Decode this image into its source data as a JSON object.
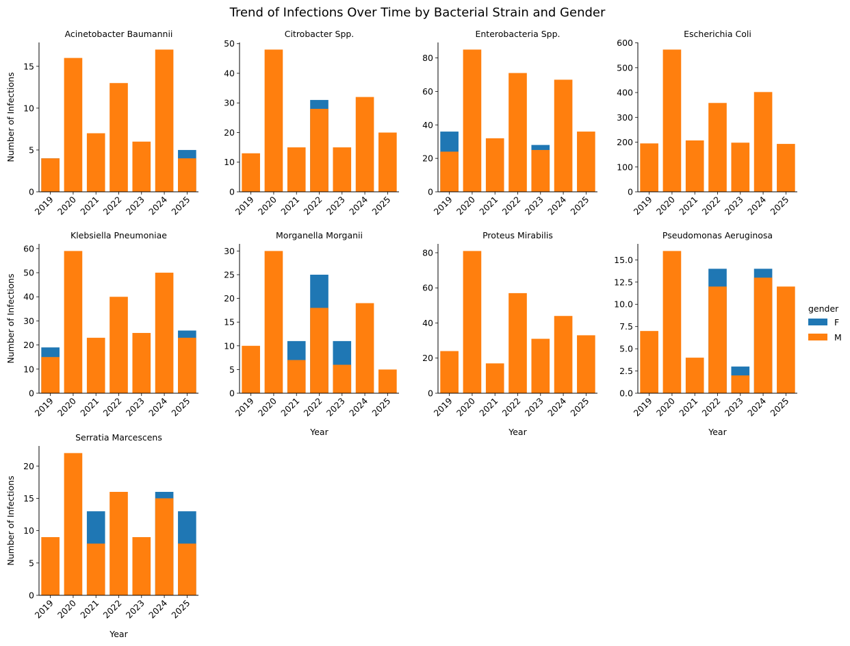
{
  "figure": {
    "title": "Trend of Infections Over Time by Bacterial Strain and Gender",
    "xlabel": "Year",
    "ylabel": "Number of Infections"
  },
  "legend": {
    "title": "gender",
    "placement": "right",
    "entries": [
      {
        "label": "F",
        "color": "#1f77b4"
      },
      {
        "label": "M",
        "color": "#ff7f0e"
      }
    ]
  },
  "colors": {
    "F": "#1f77b4",
    "M": "#ff7f0e"
  },
  "chart_data": [
    {
      "type": "bar",
      "title": "Acinetobacter Baumannii",
      "categories": [
        "2019",
        "2020",
        "2021",
        "2022",
        "2023",
        "2024",
        "2025"
      ],
      "series": [
        {
          "name": "F",
          "values": [
            4,
            0,
            0,
            0,
            0,
            0,
            5
          ]
        },
        {
          "name": "M",
          "values": [
            4,
            16,
            7,
            13,
            6,
            17,
            4
          ]
        }
      ],
      "ylim": [
        0,
        17.85
      ],
      "yticks": [
        0,
        5,
        10,
        15
      ],
      "ytick_labels": [
        "0",
        "5",
        "10",
        "15"
      ],
      "xlabel": "",
      "ylabel": "Number of Infections"
    },
    {
      "type": "bar",
      "title": "Citrobacter Spp.",
      "categories": [
        "2019",
        "2020",
        "2021",
        "2022",
        "2023",
        "2024",
        "2025"
      ],
      "series": [
        {
          "name": "F",
          "values": [
            0,
            0,
            0,
            31,
            0,
            0,
            0
          ]
        },
        {
          "name": "M",
          "values": [
            13,
            48,
            15,
            28,
            15,
            32,
            20
          ]
        }
      ],
      "ylim": [
        0,
        50.4
      ],
      "yticks": [
        0,
        10,
        20,
        30,
        40,
        50
      ],
      "ytick_labels": [
        "0",
        "10",
        "20",
        "30",
        "40",
        "50"
      ],
      "xlabel": "",
      "ylabel": ""
    },
    {
      "type": "bar",
      "title": "Enterobacteria Spp.",
      "categories": [
        "2019",
        "2020",
        "2021",
        "2022",
        "2023",
        "2024",
        "2025"
      ],
      "series": [
        {
          "name": "F",
          "values": [
            36,
            0,
            0,
            0,
            28,
            0,
            0
          ]
        },
        {
          "name": "M",
          "values": [
            24,
            85,
            32,
            71,
            25,
            67,
            36
          ]
        }
      ],
      "ylim": [
        0,
        89.25
      ],
      "yticks": [
        0,
        20,
        40,
        60,
        80
      ],
      "ytick_labels": [
        "0",
        "20",
        "40",
        "60",
        "80"
      ],
      "xlabel": "",
      "ylabel": ""
    },
    {
      "type": "bar",
      "title": "Escherichia Coli",
      "categories": [
        "2019",
        "2020",
        "2021",
        "2022",
        "2023",
        "2024",
        "2025"
      ],
      "series": [
        {
          "name": "F",
          "values": [
            0,
            0,
            0,
            0,
            0,
            0,
            0
          ]
        },
        {
          "name": "M",
          "values": [
            195,
            573,
            207,
            358,
            198,
            402,
            193
          ]
        }
      ],
      "ylim": [
        0,
        601.65
      ],
      "yticks": [
        0,
        100,
        200,
        300,
        400,
        500,
        600
      ],
      "ytick_labels": [
        "0",
        "100",
        "200",
        "300",
        "400",
        "500",
        "600"
      ],
      "xlabel": "",
      "ylabel": ""
    },
    {
      "type": "bar",
      "title": "Klebsiella Pneumoniae",
      "categories": [
        "2019",
        "2020",
        "2021",
        "2022",
        "2023",
        "2024",
        "2025"
      ],
      "series": [
        {
          "name": "F",
          "values": [
            19,
            0,
            0,
            0,
            0,
            0,
            26
          ]
        },
        {
          "name": "M",
          "values": [
            15,
            59,
            23,
            40,
            25,
            50,
            23
          ]
        }
      ],
      "ylim": [
        0,
        61.95
      ],
      "yticks": [
        0,
        10,
        20,
        30,
        40,
        50,
        60
      ],
      "ytick_labels": [
        "0",
        "10",
        "20",
        "30",
        "40",
        "50",
        "60"
      ],
      "xlabel": "",
      "ylabel": "Number of Infections"
    },
    {
      "type": "bar",
      "title": "Morganella Morganii",
      "categories": [
        "2019",
        "2020",
        "2021",
        "2022",
        "2023",
        "2024",
        "2025"
      ],
      "series": [
        {
          "name": "F",
          "values": [
            0,
            0,
            11,
            25,
            11,
            0,
            0
          ]
        },
        {
          "name": "M",
          "values": [
            10,
            30,
            7,
            18,
            6,
            19,
            5
          ]
        }
      ],
      "ylim": [
        0,
        31.5
      ],
      "yticks": [
        0,
        5,
        10,
        15,
        20,
        25,
        30
      ],
      "ytick_labels": [
        "0",
        "5",
        "10",
        "15",
        "20",
        "25",
        "30"
      ],
      "xlabel": "Year",
      "ylabel": ""
    },
    {
      "type": "bar",
      "title": "Proteus Mirabilis",
      "categories": [
        "2019",
        "2020",
        "2021",
        "2022",
        "2023",
        "2024",
        "2025"
      ],
      "series": [
        {
          "name": "F",
          "values": [
            0,
            0,
            0,
            0,
            0,
            0,
            0
          ]
        },
        {
          "name": "M",
          "values": [
            24,
            81,
            17,
            57,
            31,
            44,
            33
          ]
        }
      ],
      "ylim": [
        0,
        85.05
      ],
      "yticks": [
        0,
        20,
        40,
        60,
        80
      ],
      "ytick_labels": [
        "0",
        "20",
        "40",
        "60",
        "80"
      ],
      "xlabel": "Year",
      "ylabel": ""
    },
    {
      "type": "bar",
      "title": "Pseudomonas Aeruginosa",
      "categories": [
        "2019",
        "2020",
        "2021",
        "2022",
        "2023",
        "2024",
        "2025"
      ],
      "series": [
        {
          "name": "F",
          "values": [
            0,
            0,
            0,
            14,
            3,
            14,
            0
          ]
        },
        {
          "name": "M",
          "values": [
            7,
            16,
            4,
            12,
            2,
            13,
            12
          ]
        }
      ],
      "ylim": [
        0,
        16.8
      ],
      "yticks": [
        0,
        2.5,
        5,
        7.5,
        10,
        12.5,
        15
      ],
      "ytick_labels": [
        "0.0",
        "2.5",
        "5.0",
        "7.5",
        "10.0",
        "12.5",
        "15.0"
      ],
      "xlabel": "Year",
      "ylabel": ""
    },
    {
      "type": "bar",
      "title": "Serratia Marcescens",
      "categories": [
        "2019",
        "2020",
        "2021",
        "2022",
        "2023",
        "2024",
        "2025"
      ],
      "series": [
        {
          "name": "F",
          "values": [
            0,
            0,
            13,
            0,
            0,
            16,
            13
          ]
        },
        {
          "name": "M",
          "values": [
            9,
            22,
            8,
            16,
            9,
            15,
            8
          ]
        }
      ],
      "ylim": [
        0,
        23.1
      ],
      "yticks": [
        0,
        5,
        10,
        15,
        20
      ],
      "ytick_labels": [
        "0",
        "5",
        "10",
        "15",
        "20"
      ],
      "xlabel": "Year",
      "ylabel": "Number of Infections"
    }
  ]
}
